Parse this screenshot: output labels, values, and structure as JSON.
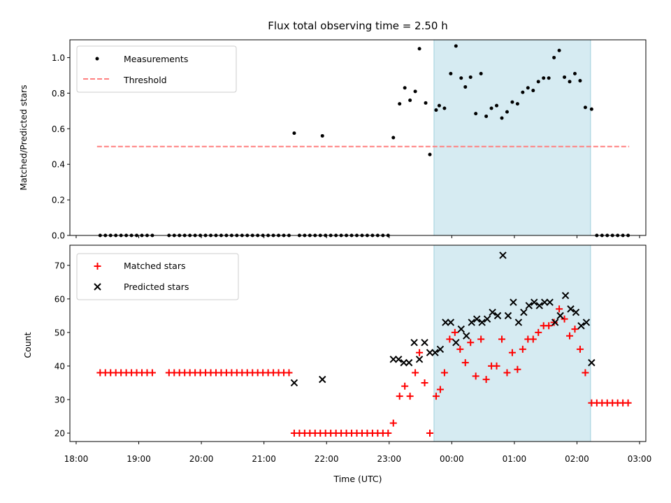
{
  "title": "Flux total observing time = 2.50 h",
  "chart_data": [
    {
      "type": "scatter",
      "ylabel": "Matched/Predicted stars",
      "xlim": [
        "17:54",
        "03:06"
      ],
      "ylim": [
        0,
        1.1
      ],
      "yticks": [
        "0.0",
        "0.2",
        "0.4",
        "0.6",
        "0.8",
        "1.0"
      ],
      "threshold": 0.5,
      "threshold_range": [
        "18:20",
        "02:50"
      ],
      "shaded_window": [
        "23:43",
        "02:13"
      ],
      "legend_position": "upper left",
      "legend": [
        {
          "label": "Measurements",
          "marker": "dot",
          "color": "#000000"
        },
        {
          "label": "Threshold",
          "marker": "dashed-line",
          "color": "#ff7f7f"
        }
      ],
      "measurements": [
        [
          "18:23",
          0
        ],
        [
          "18:28",
          0
        ],
        [
          "18:33",
          0
        ],
        [
          "18:38",
          0
        ],
        [
          "18:43",
          0
        ],
        [
          "18:48",
          0
        ],
        [
          "18:53",
          0
        ],
        [
          "18:58",
          0
        ],
        [
          "19:03",
          0
        ],
        [
          "19:08",
          0
        ],
        [
          "19:13",
          0
        ],
        [
          "19:29",
          0
        ],
        [
          "19:34",
          0
        ],
        [
          "19:39",
          0
        ],
        [
          "19:44",
          0
        ],
        [
          "19:49",
          0
        ],
        [
          "19:54",
          0
        ],
        [
          "19:59",
          0
        ],
        [
          "20:04",
          0
        ],
        [
          "20:09",
          0
        ],
        [
          "20:14",
          0
        ],
        [
          "20:19",
          0
        ],
        [
          "20:24",
          0
        ],
        [
          "20:29",
          0
        ],
        [
          "20:34",
          0
        ],
        [
          "20:39",
          0
        ],
        [
          "20:44",
          0
        ],
        [
          "20:49",
          0
        ],
        [
          "20:54",
          0
        ],
        [
          "20:59",
          0
        ],
        [
          "21:04",
          0
        ],
        [
          "21:09",
          0
        ],
        [
          "21:14",
          0
        ],
        [
          "21:19",
          0
        ],
        [
          "21:24",
          0
        ],
        [
          "21:29",
          0.575
        ],
        [
          "21:34",
          0
        ],
        [
          "21:39",
          0
        ],
        [
          "21:44",
          0
        ],
        [
          "21:49",
          0
        ],
        [
          "21:54",
          0
        ],
        [
          "21:56",
          0.56
        ],
        [
          "21:59",
          0
        ],
        [
          "22:04",
          0
        ],
        [
          "22:09",
          0
        ],
        [
          "22:14",
          0
        ],
        [
          "22:19",
          0
        ],
        [
          "22:24",
          0
        ],
        [
          "22:29",
          0
        ],
        [
          "22:34",
          0
        ],
        [
          "22:39",
          0
        ],
        [
          "22:44",
          0
        ],
        [
          "22:49",
          0
        ],
        [
          "22:54",
          0
        ],
        [
          "22:59",
          0
        ],
        [
          "23:04",
          0.55
        ],
        [
          "23:10",
          0.74
        ],
        [
          "23:15",
          0.83
        ],
        [
          "23:20",
          0.76
        ],
        [
          "23:25",
          0.81
        ],
        [
          "23:29",
          1.05
        ],
        [
          "23:35",
          0.745
        ],
        [
          "23:39",
          0.455
        ],
        [
          "23:45",
          0.705
        ],
        [
          "23:48",
          0.73
        ],
        [
          "23:53",
          0.715
        ],
        [
          "23:59",
          0.91
        ],
        [
          "00:04",
          1.065
        ],
        [
          "00:09",
          0.885
        ],
        [
          "00:13",
          0.835
        ],
        [
          "00:18",
          0.89
        ],
        [
          "00:23",
          0.685
        ],
        [
          "00:28",
          0.91
        ],
        [
          "00:33",
          0.67
        ],
        [
          "00:38",
          0.715
        ],
        [
          "00:43",
          0.73
        ],
        [
          "00:48",
          0.66
        ],
        [
          "00:53",
          0.695
        ],
        [
          "00:58",
          0.75
        ],
        [
          "01:03",
          0.74
        ],
        [
          "01:08",
          0.805
        ],
        [
          "01:13",
          0.83
        ],
        [
          "01:18",
          0.815
        ],
        [
          "01:23",
          0.865
        ],
        [
          "01:28",
          0.885
        ],
        [
          "01:33",
          0.885
        ],
        [
          "01:38",
          1.0
        ],
        [
          "01:43",
          1.04
        ],
        [
          "01:48",
          0.89
        ],
        [
          "01:53",
          0.865
        ],
        [
          "01:58",
          0.91
        ],
        [
          "02:03",
          0.87
        ],
        [
          "02:08",
          0.72
        ],
        [
          "02:14",
          0.71
        ],
        [
          "02:19",
          0
        ],
        [
          "02:24",
          0
        ],
        [
          "02:29",
          0
        ],
        [
          "02:34",
          0
        ],
        [
          "02:39",
          0
        ],
        [
          "02:44",
          0
        ],
        [
          "02:49",
          0
        ]
      ]
    },
    {
      "type": "scatter",
      "xlabel": "Time (UTC)",
      "ylabel": "Count",
      "xlim": [
        "17:54",
        "03:06"
      ],
      "ylim": [
        17.5,
        76
      ],
      "xticks": [
        "18:00",
        "19:00",
        "20:00",
        "21:00",
        "22:00",
        "23:00",
        "00:00",
        "01:00",
        "02:00",
        "03:00"
      ],
      "yticks": [
        "20",
        "30",
        "40",
        "50",
        "60",
        "70"
      ],
      "shaded_window": [
        "23:43",
        "02:13"
      ],
      "legend_position": "upper left",
      "legend": [
        {
          "label": "Matched stars",
          "marker": "plus",
          "color": "#ff0000"
        },
        {
          "label": "Predicted stars",
          "marker": "x",
          "color": "#000000"
        }
      ],
      "matched": [
        [
          "18:23",
          38
        ],
        [
          "18:28",
          38
        ],
        [
          "18:33",
          38
        ],
        [
          "18:38",
          38
        ],
        [
          "18:43",
          38
        ],
        [
          "18:48",
          38
        ],
        [
          "18:53",
          38
        ],
        [
          "18:58",
          38
        ],
        [
          "19:03",
          38
        ],
        [
          "19:08",
          38
        ],
        [
          "19:13",
          38
        ],
        [
          "19:29",
          38
        ],
        [
          "19:34",
          38
        ],
        [
          "19:39",
          38
        ],
        [
          "19:44",
          38
        ],
        [
          "19:49",
          38
        ],
        [
          "19:54",
          38
        ],
        [
          "19:59",
          38
        ],
        [
          "20:04",
          38
        ],
        [
          "20:09",
          38
        ],
        [
          "20:14",
          38
        ],
        [
          "20:19",
          38
        ],
        [
          "20:24",
          38
        ],
        [
          "20:29",
          38
        ],
        [
          "20:34",
          38
        ],
        [
          "20:39",
          38
        ],
        [
          "20:44",
          38
        ],
        [
          "20:49",
          38
        ],
        [
          "20:54",
          38
        ],
        [
          "20:59",
          38
        ],
        [
          "21:04",
          38
        ],
        [
          "21:09",
          38
        ],
        [
          "21:14",
          38
        ],
        [
          "21:19",
          38
        ],
        [
          "21:24",
          38
        ],
        [
          "21:29",
          20
        ],
        [
          "21:34",
          20
        ],
        [
          "21:39",
          20
        ],
        [
          "21:44",
          20
        ],
        [
          "21:49",
          20
        ],
        [
          "21:54",
          20
        ],
        [
          "21:59",
          20
        ],
        [
          "22:04",
          20
        ],
        [
          "22:09",
          20
        ],
        [
          "22:14",
          20
        ],
        [
          "22:19",
          20
        ],
        [
          "22:24",
          20
        ],
        [
          "22:29",
          20
        ],
        [
          "22:34",
          20
        ],
        [
          "22:39",
          20
        ],
        [
          "22:44",
          20
        ],
        [
          "22:49",
          20
        ],
        [
          "22:54",
          20
        ],
        [
          "22:59",
          20
        ],
        [
          "23:04",
          23
        ],
        [
          "23:10",
          31
        ],
        [
          "23:15",
          34
        ],
        [
          "23:20",
          31
        ],
        [
          "23:25",
          38
        ],
        [
          "23:29",
          44
        ],
        [
          "23:34",
          35
        ],
        [
          "23:39",
          20
        ],
        [
          "23:45",
          31
        ],
        [
          "23:49",
          33
        ],
        [
          "23:53",
          38
        ],
        [
          "23:58",
          48
        ],
        [
          "00:03",
          50
        ],
        [
          "00:08",
          45
        ],
        [
          "00:13",
          41
        ],
        [
          "00:18",
          47
        ],
        [
          "00:23",
          37
        ],
        [
          "00:28",
          48
        ],
        [
          "00:33",
          36
        ],
        [
          "00:38",
          40
        ],
        [
          "00:43",
          40
        ],
        [
          "00:48",
          48
        ],
        [
          "00:53",
          38
        ],
        [
          "00:58",
          44
        ],
        [
          "01:03",
          39
        ],
        [
          "01:08",
          45
        ],
        [
          "01:13",
          48
        ],
        [
          "01:18",
          48
        ],
        [
          "01:23",
          50
        ],
        [
          "01:28",
          52
        ],
        [
          "01:33",
          52
        ],
        [
          "01:38",
          53
        ],
        [
          "01:43",
          57
        ],
        [
          "01:48",
          54
        ],
        [
          "01:53",
          49
        ],
        [
          "01:58",
          51
        ],
        [
          "02:03",
          45
        ],
        [
          "02:08",
          38
        ],
        [
          "02:14",
          29
        ],
        [
          "02:19",
          29
        ],
        [
          "02:24",
          29
        ],
        [
          "02:29",
          29
        ],
        [
          "02:34",
          29
        ],
        [
          "02:39",
          29
        ],
        [
          "02:44",
          29
        ],
        [
          "02:49",
          29
        ]
      ],
      "predicted": [
        [
          "21:29",
          35
        ],
        [
          "21:56",
          36
        ],
        [
          "23:04",
          42
        ],
        [
          "23:09",
          42
        ],
        [
          "23:14",
          41
        ],
        [
          "23:19",
          41
        ],
        [
          "23:24",
          47
        ],
        [
          "23:29",
          42
        ],
        [
          "23:34",
          47
        ],
        [
          "23:39",
          44
        ],
        [
          "23:44",
          44
        ],
        [
          "23:49",
          45
        ],
        [
          "23:54",
          53
        ],
        [
          "23:59",
          53
        ],
        [
          "00:04",
          47
        ],
        [
          "00:09",
          51
        ],
        [
          "00:14",
          49
        ],
        [
          "00:19",
          53
        ],
        [
          "00:24",
          54
        ],
        [
          "00:29",
          53
        ],
        [
          "00:34",
          54
        ],
        [
          "00:39",
          56
        ],
        [
          "00:44",
          55
        ],
        [
          "00:49",
          73
        ],
        [
          "00:54",
          55
        ],
        [
          "00:59",
          59
        ],
        [
          "01:04",
          53
        ],
        [
          "01:09",
          56
        ],
        [
          "01:14",
          58
        ],
        [
          "01:19",
          59
        ],
        [
          "01:24",
          58
        ],
        [
          "01:29",
          59
        ],
        [
          "01:34",
          59
        ],
        [
          "01:39",
          53
        ],
        [
          "01:44",
          55
        ],
        [
          "01:49",
          61
        ],
        [
          "01:54",
          57
        ],
        [
          "01:59",
          56
        ],
        [
          "02:04",
          52
        ],
        [
          "02:09",
          53
        ],
        [
          "02:14",
          41
        ]
      ]
    }
  ]
}
